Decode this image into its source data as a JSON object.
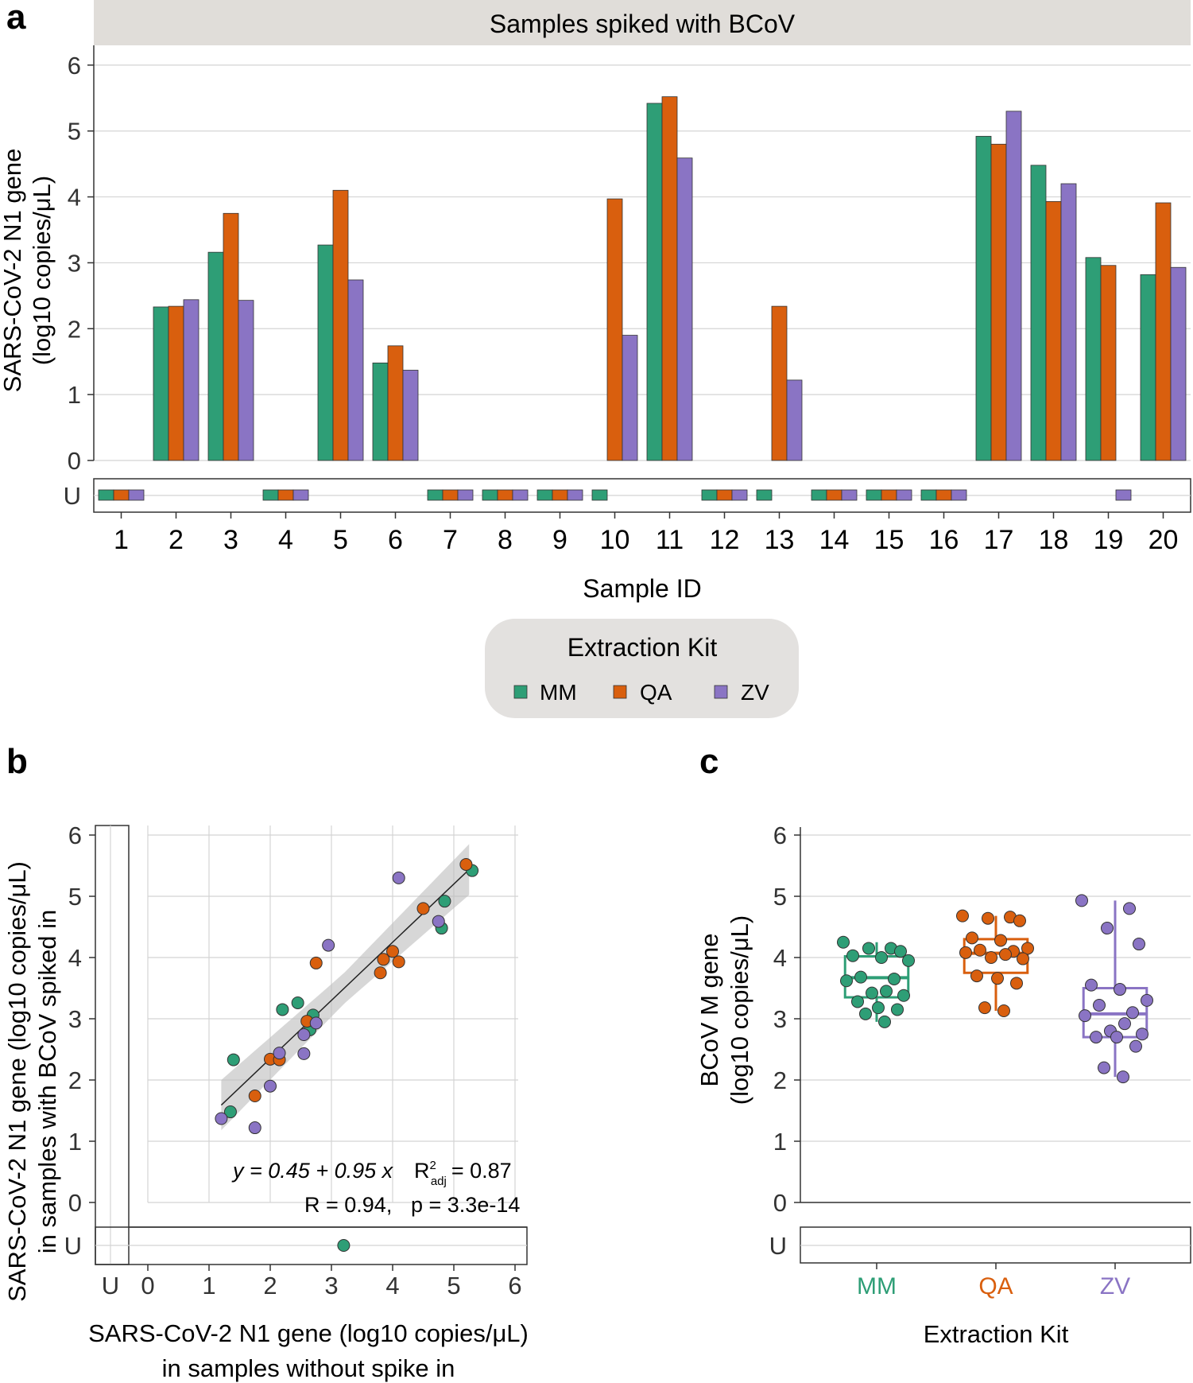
{
  "colors": {
    "MM": "#2e9e76",
    "QA": "#d95f0e",
    "ZV": "#8a74c4",
    "strip": "#e0ddd9",
    "legend_bg": "#e3e1df",
    "band": "#bdbdbd"
  },
  "panel_labels": {
    "a": "a",
    "b": "b",
    "c": "c"
  },
  "chart_data": [
    {
      "id": "a",
      "type": "bar",
      "strip_title": "Samples spiked with BCoV",
      "ylabel_line1": "SARS-CoV-2 N1 gene",
      "ylabel_line2": "(log10 copies/μL)",
      "xlabel": "Sample ID",
      "ylim": [
        0,
        6.3
      ],
      "yticks": [
        0,
        1,
        2,
        3,
        4,
        5,
        6
      ],
      "undetected_label": "U",
      "categories": [
        "1",
        "2",
        "3",
        "4",
        "5",
        "6",
        "7",
        "8",
        "9",
        "10",
        "11",
        "12",
        "13",
        "14",
        "15",
        "16",
        "17",
        "18",
        "19",
        "20"
      ],
      "series": [
        {
          "name": "MM",
          "values": [
            null,
            2.33,
            3.16,
            null,
            3.27,
            1.48,
            null,
            null,
            null,
            null,
            5.42,
            null,
            null,
            null,
            null,
            null,
            4.92,
            4.48,
            3.08,
            2.82
          ]
        },
        {
          "name": "QA",
          "values": [
            null,
            2.34,
            3.75,
            null,
            4.1,
            1.74,
            null,
            null,
            null,
            3.97,
            5.52,
            null,
            2.34,
            null,
            null,
            null,
            4.8,
            3.93,
            2.96,
            3.91
          ]
        },
        {
          "name": "ZV",
          "values": [
            null,
            2.44,
            2.43,
            null,
            2.74,
            1.37,
            null,
            null,
            null,
            1.9,
            4.59,
            null,
            1.22,
            null,
            null,
            null,
            5.3,
            4.2,
            null,
            2.93
          ]
        }
      ],
      "legend": {
        "title": "Extraction Kit",
        "items": [
          "MM",
          "QA",
          "ZV"
        ],
        "position": "bottom"
      }
    },
    {
      "id": "b",
      "type": "scatter",
      "xlabel_line1": "SARS-CoV-2 N1 gene (log10 copies/μL)",
      "xlabel_line2": "in samples without spike in",
      "ylabel_line1": "SARS-CoV-2 N1 gene (log10 copies/μL)",
      "ylabel_line2": "in samples with BCoV spiked in",
      "xlim": [
        -0.1,
        6.2
      ],
      "ylim": [
        -0.1,
        6.2
      ],
      "ticks": [
        0,
        1,
        2,
        3,
        4,
        5,
        6
      ],
      "undetected_label": "U",
      "equation": "y = 0.45 + 0.95 x",
      "r2_label": "R",
      "r2_sup": "2",
      "r2_sub": "adj",
      "r2_value": "= 0.87",
      "r_text": "R = 0.94,",
      "p_text": "p = 3.3e-14",
      "fit": {
        "intercept": 0.45,
        "slope": 0.95,
        "x_range": [
          1.2,
          5.25
        ]
      },
      "points": [
        {
          "kit": "MM",
          "x": 1.4,
          "y": 2.33
        },
        {
          "kit": "MM",
          "x": 2.2,
          "y": 3.15
        },
        {
          "kit": "MM",
          "x": 2.45,
          "y": 3.26
        },
        {
          "kit": "MM",
          "x": 2.7,
          "y": 3.06
        },
        {
          "kit": "MM",
          "x": 2.65,
          "y": 2.82
        },
        {
          "kit": "MM",
          "x": 1.35,
          "y": 1.48
        },
        {
          "kit": "MM",
          "x": 4.85,
          "y": 4.92
        },
        {
          "kit": "MM",
          "x": 4.8,
          "y": 4.48
        },
        {
          "kit": "MM",
          "x": 5.3,
          "y": 5.42
        },
        {
          "kit": "MM",
          "x": 3.2,
          "y": "U"
        },
        {
          "kit": "QA",
          "x": 1.75,
          "y": 1.74
        },
        {
          "kit": "QA",
          "x": 2.0,
          "y": 2.34
        },
        {
          "kit": "QA",
          "x": 2.15,
          "y": 2.33
        },
        {
          "kit": "QA",
          "x": 2.6,
          "y": 2.96
        },
        {
          "kit": "QA",
          "x": 2.75,
          "y": 3.91
        },
        {
          "kit": "QA",
          "x": 3.8,
          "y": 3.75
        },
        {
          "kit": "QA",
          "x": 3.85,
          "y": 3.97
        },
        {
          "kit": "QA",
          "x": 4.0,
          "y": 4.1
        },
        {
          "kit": "QA",
          "x": 4.1,
          "y": 3.93
        },
        {
          "kit": "QA",
          "x": 4.5,
          "y": 4.8
        },
        {
          "kit": "QA",
          "x": 5.2,
          "y": 5.52
        },
        {
          "kit": "ZV",
          "x": 1.2,
          "y": 1.37
        },
        {
          "kit": "ZV",
          "x": 1.75,
          "y": 1.22
        },
        {
          "kit": "ZV",
          "x": 2.0,
          "y": 1.9
        },
        {
          "kit": "ZV",
          "x": 2.15,
          "y": 2.44
        },
        {
          "kit": "ZV",
          "x": 2.55,
          "y": 2.43
        },
        {
          "kit": "ZV",
          "x": 2.55,
          "y": 2.74
        },
        {
          "kit": "ZV",
          "x": 2.75,
          "y": 2.93
        },
        {
          "kit": "ZV",
          "x": 2.95,
          "y": 4.2
        },
        {
          "kit": "ZV",
          "x": 4.1,
          "y": 5.3
        },
        {
          "kit": "ZV",
          "x": 4.75,
          "y": 4.59
        }
      ]
    },
    {
      "id": "c",
      "type": "box",
      "ylabel_line1": "BCoV M gene",
      "ylabel_line2": "(log10 copies/μL)",
      "xlabel": "Extraction Kit",
      "ylim": [
        0,
        6.3
      ],
      "yticks": [
        0,
        1,
        2,
        3,
        4,
        5,
        6
      ],
      "undetected_label": "U",
      "categories": [
        "MM",
        "QA",
        "ZV"
      ],
      "boxes": [
        {
          "kit": "MM",
          "q1": 3.35,
          "median": 3.67,
          "q3": 4.02,
          "whisker_low": 2.95,
          "whisker_high": 4.25,
          "points": [
            4.25,
            4.15,
            4.15,
            4.1,
            4.03,
            4.0,
            3.95,
            3.68,
            3.65,
            3.62,
            3.45,
            3.42,
            3.38,
            3.28,
            3.18,
            3.15,
            3.08,
            2.95
          ]
        },
        {
          "kit": "QA",
          "q1": 3.75,
          "median": 4.07,
          "q3": 4.3,
          "whisker_low": 3.13,
          "whisker_high": 4.68,
          "points": [
            4.68,
            4.66,
            4.64,
            4.6,
            4.32,
            4.28,
            4.15,
            4.12,
            4.1,
            4.08,
            4.05,
            4.0,
            3.98,
            3.7,
            3.66,
            3.58,
            3.18,
            3.13
          ]
        },
        {
          "kit": "ZV",
          "q1": 2.7,
          "median": 3.08,
          "q3": 3.5,
          "whisker_low": 2.05,
          "whisker_high": 4.93,
          "points": [
            4.93,
            4.8,
            4.48,
            4.22,
            3.55,
            3.48,
            3.3,
            3.22,
            3.1,
            3.05,
            2.92,
            2.8,
            2.75,
            2.7,
            2.7,
            2.55,
            2.2,
            2.05
          ]
        }
      ]
    }
  ]
}
